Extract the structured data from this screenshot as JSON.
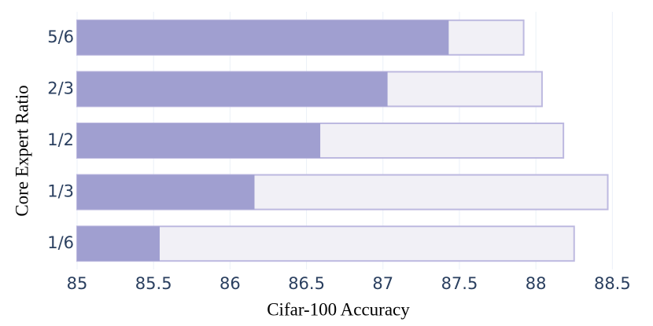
{
  "chart_data": {
    "type": "bar",
    "orientation": "horizontal",
    "overlay": true,
    "x_label": "Cifar-100 Accuracy",
    "y_label": "Core Expert Ratio",
    "categories": [
      "5/6",
      "2/3",
      "1/2",
      "1/3",
      "1/6"
    ],
    "series": [
      {
        "color": "#f1f0f6",
        "edgecolor": "#bdb9e0",
        "values": [
          87.92,
          88.04,
          88.18,
          88.47,
          88.25
        ]
      },
      {
        "color": "#a09fd0",
        "values": [
          87.43,
          87.03,
          86.59,
          86.16,
          85.54
        ]
      }
    ],
    "xlim": [
      85,
      88.56
    ],
    "xticks": [
      85,
      85.5,
      86,
      86.5,
      87,
      87.5,
      88,
      88.5
    ],
    "grid": true
  }
}
